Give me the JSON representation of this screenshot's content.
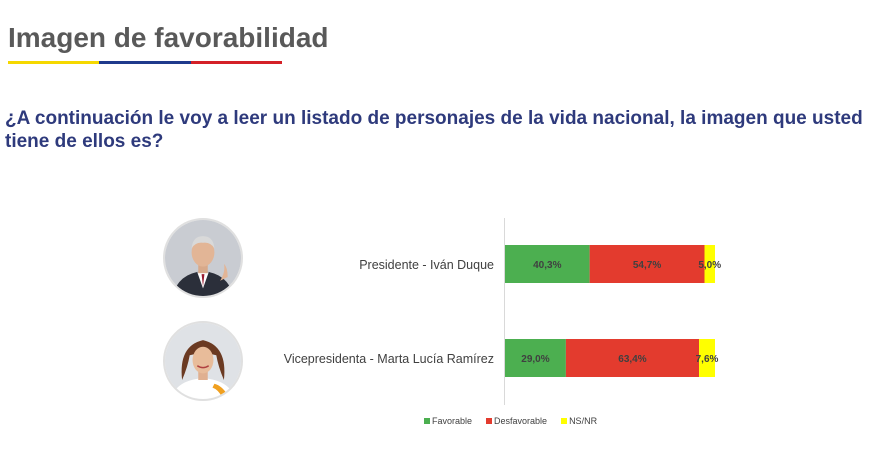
{
  "header": {
    "title": "Imagen de favorabilidad",
    "underline_colors": [
      "#f5d800",
      "#1f3a8c",
      "#d42027"
    ]
  },
  "question": "¿A continuación le voy a leer un listado de personajes de la vida nacional, la imagen que usted tiene de ellos es?",
  "people": [
    {
      "label": "Presidente - Iván Duque",
      "photo": "portrait-man-suit-icon"
    },
    {
      "label": "Vicepresidenta - Marta Lucía Ramírez",
      "photo": "portrait-woman-icon"
    }
  ],
  "chart_data": {
    "type": "bar",
    "orientation": "horizontal",
    "stacked": true,
    "percent_stacked": true,
    "categories": [
      "Presidente - Iván Duque",
      "Vicepresidenta - Marta Lucía Ramírez"
    ],
    "series": [
      {
        "name": "Favorable",
        "color": "#4caf50",
        "values": [
          40.3,
          29.0
        ],
        "labels": [
          "40,3%",
          "29,0%"
        ]
      },
      {
        "name": "Desfavorable",
        "color": "#e33b2e",
        "values": [
          54.7,
          63.4
        ],
        "labels": [
          "54,7%",
          "63,4%"
        ]
      },
      {
        "name": "NS/NR",
        "color": "#ffff00",
        "values": [
          5.0,
          7.6
        ],
        "labels": [
          "5,0%",
          "7,6%"
        ]
      }
    ],
    "xlim": [
      0,
      100
    ],
    "grid": false,
    "legend_position": "bottom"
  }
}
